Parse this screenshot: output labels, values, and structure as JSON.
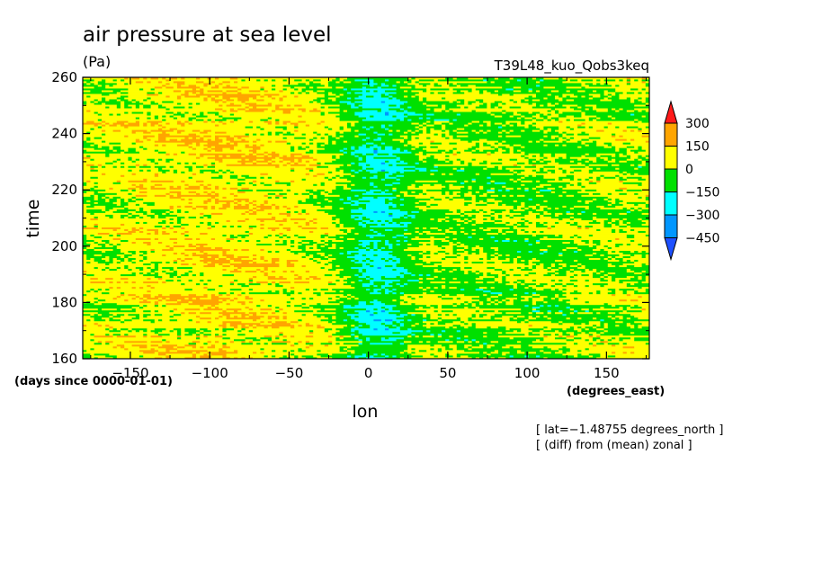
{
  "chart_data": {
    "type": "heatmap",
    "title": "air pressure at sea level",
    "units": "(Pa)",
    "run_label": "T39L48_kuo_Qobs3keq",
    "xlabel": "lon",
    "ylabel": "time",
    "x_units": "(degrees_east)",
    "y_units": "(days since 0000-01-01)",
    "xlim": [
      -180,
      177
    ],
    "ylim": [
      160,
      260
    ],
    "x_ticks": [
      {
        "value": -150,
        "label": "−150"
      },
      {
        "value": -100,
        "label": "−100"
      },
      {
        "value": -50,
        "label": "−50"
      },
      {
        "value": 0,
        "label": "0"
      },
      {
        "value": 50,
        "label": "50"
      },
      {
        "value": 100,
        "label": "100"
      },
      {
        "value": 150,
        "label": "150"
      }
    ],
    "y_ticks": [
      {
        "value": 160,
        "label": "160"
      },
      {
        "value": 180,
        "label": "180"
      },
      {
        "value": 200,
        "label": "200"
      },
      {
        "value": 220,
        "label": "220"
      },
      {
        "value": 240,
        "label": "240"
      },
      {
        "value": 260,
        "label": "260"
      }
    ],
    "color_levels": [
      {
        "label": "300",
        "value": 300
      },
      {
        "label": "150",
        "value": 150
      },
      {
        "label": "0",
        "value": 0
      },
      {
        "label": "−150",
        "value": -150
      },
      {
        "label": "−300",
        "value": -300
      },
      {
        "label": "−450",
        "value": -450
      }
    ],
    "color_bins": [
      {
        "range": "> 300",
        "color": "#ff1a1a"
      },
      {
        "range": "150 to 300",
        "color": "#ffa500"
      },
      {
        "range": "0 to 150",
        "color": "#ffff00"
      },
      {
        "range": "-150 to 0",
        "color": "#00e000"
      },
      {
        "range": "-300 to -150",
        "color": "#00ffff"
      },
      {
        "range": "-450 to -300",
        "color": "#0096ff"
      },
      {
        "range": "< -450",
        "color": "#1e50ff"
      }
    ],
    "notes": [
      "[ lat=−1.48755 degrees_north ]",
      "[ (diff) from (mean) zonal ]"
    ]
  }
}
